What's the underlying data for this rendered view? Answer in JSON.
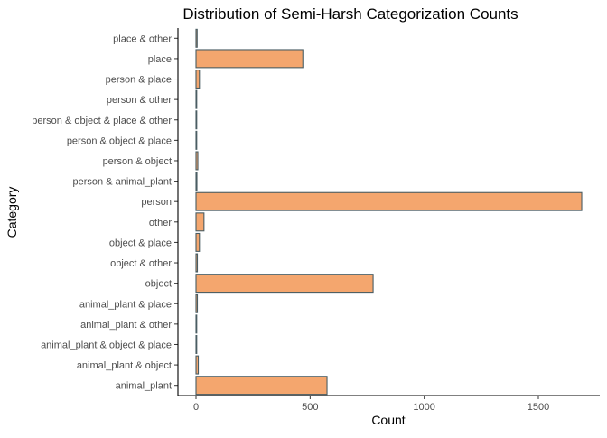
{
  "chart_data": {
    "type": "bar",
    "orientation": "horizontal",
    "title": "Distribution of Semi-Harsh Categorization Counts",
    "xlabel": "Count",
    "ylabel": "Category",
    "xlim": [
      0,
      1700
    ],
    "x_ticks": [
      0,
      500,
      1000,
      1500
    ],
    "x_tick_labels": [
      "0",
      "500",
      "1000",
      "1500"
    ],
    "grid": false,
    "legend": "none",
    "colors": {
      "bar_fill": "#f4a66e",
      "bar_stroke": "#4a5d63",
      "axis": "#000000"
    },
    "categories": [
      "animal_plant",
      "animal_plant & object",
      "animal_plant & object & place",
      "animal_plant & other",
      "animal_plant & place",
      "object",
      "object & other",
      "object & place",
      "other",
      "person",
      "person & animal_plant",
      "person & object",
      "person & object & place",
      "person & object & place & other",
      "person & other",
      "person & place",
      "place",
      "place & other"
    ],
    "values": [
      574,
      10,
      2,
      3,
      6,
      776,
      6,
      15,
      35,
      1690,
      4,
      8,
      2,
      1,
      2,
      15,
      468,
      5
    ]
  }
}
